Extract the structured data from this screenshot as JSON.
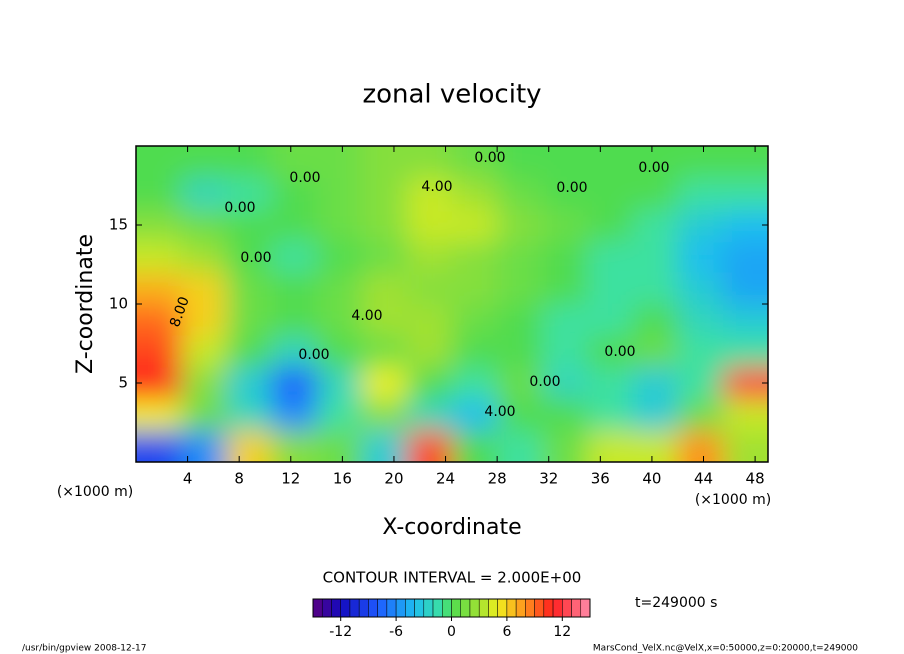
{
  "chart_data": {
    "type": "contour",
    "title": "zonal velocity",
    "x_label": "X-coordinate",
    "y_label": "Z-coordinate",
    "x_unit": "(×1000 m)",
    "y_unit": "(×1000 m)",
    "xlim": [
      0,
      49
    ],
    "xticks": [
      4,
      8,
      12,
      16,
      20,
      24,
      28,
      32,
      36,
      40,
      44,
      48
    ],
    "ylim": [
      0,
      20
    ],
    "yticks": [
      5,
      10,
      15
    ],
    "z": [
      [
        -9,
        -6,
        6,
        2,
        1,
        -3,
        10,
        0,
        -1,
        1,
        4,
        4,
        8,
        3
      ],
      [
        5,
        1,
        -2,
        -6,
        -1,
        2,
        -2,
        -4,
        0,
        0,
        -1,
        -3,
        1,
        4
      ],
      [
        11,
        2,
        -3,
        -8,
        -2,
        5,
        0,
        -1,
        1,
        -2,
        -1,
        -3,
        -1,
        12
      ],
      [
        10,
        4,
        0,
        -2,
        0,
        1,
        3,
        0,
        0,
        -1,
        0,
        1,
        -1,
        -1
      ],
      [
        9,
        6,
        1,
        0,
        1,
        3,
        3,
        1,
        0,
        -1,
        -1,
        0,
        -2,
        -3
      ],
      [
        7,
        6,
        1,
        0,
        1,
        3,
        2,
        2,
        1,
        0,
        -1,
        -1,
        -3,
        -5
      ],
      [
        4,
        3,
        0,
        -1,
        0,
        1,
        3,
        2,
        1,
        0,
        -1,
        -1,
        -4,
        -5
      ],
      [
        2,
        1,
        0,
        0,
        1,
        2,
        4,
        4,
        2,
        1,
        0,
        -1,
        -3,
        -4
      ],
      [
        0,
        -2,
        -1,
        0,
        1,
        2,
        4,
        3,
        1,
        0,
        0,
        0,
        -1,
        -1
      ],
      [
        0,
        0,
        0,
        1,
        1,
        2,
        2,
        1,
        0,
        0,
        0,
        0,
        0,
        0
      ]
    ],
    "contour_labels": [
      "0.00",
      "0.00",
      "4.00",
      "0.00",
      "0.00",
      "0.00",
      "8.00",
      "4.00",
      "0.00",
      "0.00",
      "4.00",
      "0.00",
      "0.00"
    ],
    "contour_interval": "CONTOUR INTERVAL = 2.000E+00",
    "clim": [
      -15,
      15
    ],
    "cticks": [
      -12,
      -6,
      0,
      6,
      12
    ],
    "time_label": "t=249000 s",
    "footer_left": "/usr/bin/gpview  2008-12-17",
    "footer_right": "MarsCond_VelX.nc@VelX,x=0:50000,z=0:20000,t=249000"
  }
}
